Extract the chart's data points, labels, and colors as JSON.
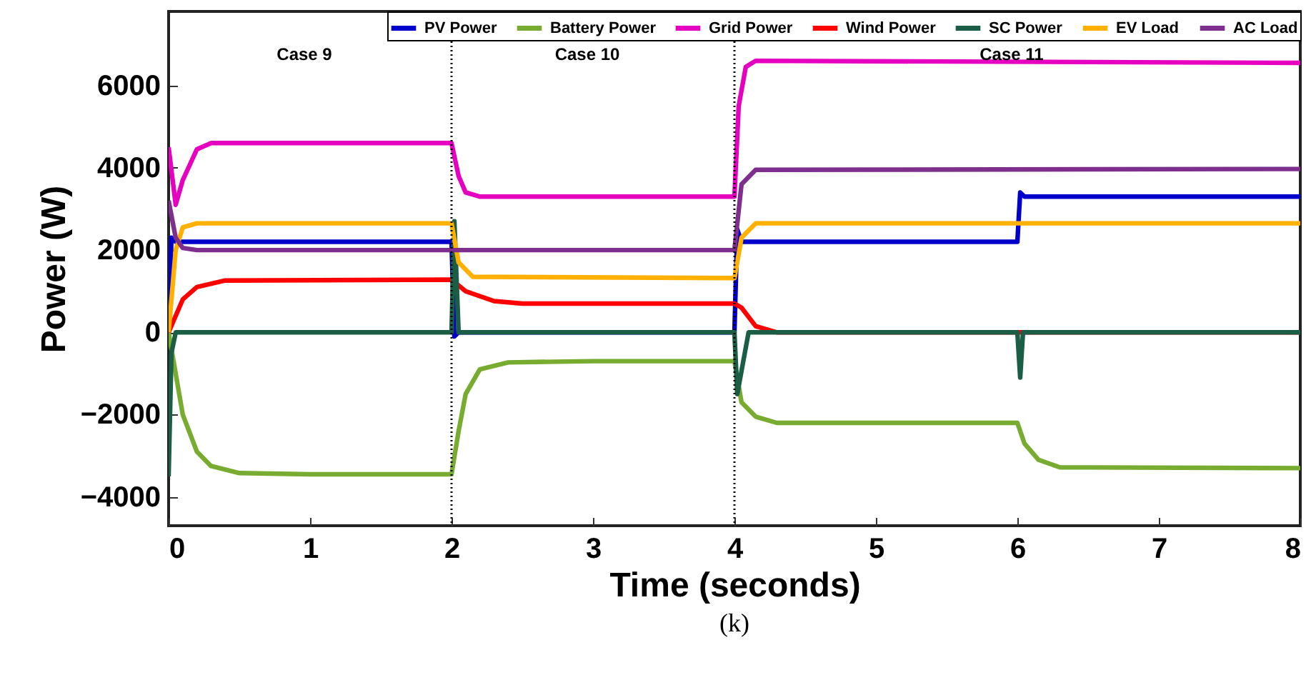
{
  "chart_data": {
    "type": "line",
    "xlabel": "Time (seconds)",
    "ylabel": "Power (W)",
    "xlim": [
      0,
      8
    ],
    "xticks": [
      0,
      1,
      2,
      3,
      4,
      5,
      6,
      7,
      8
    ],
    "ylim": [
      -4700,
      7800
    ],
    "yticks": [
      -4000,
      -2000,
      0,
      2000,
      4000,
      6000
    ],
    "legend": "top right",
    "series": [
      {
        "name": "PV Power",
        "color": "#0000cc",
        "x": [
          0,
          0.02,
          0.05,
          2.0,
          2.02,
          2.05,
          4.0,
          4.02,
          4.05,
          6.0,
          6.02,
          6.05,
          8
        ],
        "values": [
          0,
          2300,
          2200,
          2200,
          -100,
          0,
          0,
          2500,
          2200,
          2200,
          3400,
          3300,
          3300
        ]
      },
      {
        "name": "Battery Power",
        "color": "#77ac30",
        "x": [
          0,
          0.1,
          0.2,
          0.3,
          0.5,
          1,
          2.0,
          2.05,
          2.1,
          2.2,
          2.4,
          3,
          4.0,
          4.05,
          4.15,
          4.3,
          6.0,
          6.05,
          6.15,
          6.3,
          8
        ],
        "values": [
          0,
          -2000,
          -2900,
          -3250,
          -3420,
          -3450,
          -3450,
          -2400,
          -1500,
          -900,
          -730,
          -700,
          -700,
          -1700,
          -2050,
          -2200,
          -2200,
          -2700,
          -3100,
          -3280,
          -3300
        ]
      },
      {
        "name": "Grid Power",
        "color": "#e600bf",
        "x": [
          0,
          0.05,
          0.1,
          0.2,
          0.3,
          2.0,
          2.05,
          2.1,
          2.2,
          4.0,
          4.03,
          4.08,
          4.15,
          8
        ],
        "values": [
          4500,
          3100,
          3700,
          4450,
          4600,
          4600,
          3800,
          3400,
          3300,
          3300,
          5500,
          6450,
          6600,
          6550
        ]
      },
      {
        "name": "Wind Power",
        "color": "#ff0000",
        "x": [
          0,
          0.1,
          0.2,
          0.4,
          2.0,
          2.1,
          2.3,
          2.5,
          4.0,
          4.05,
          4.15,
          4.3,
          8
        ],
        "values": [
          0,
          800,
          1100,
          1260,
          1280,
          1000,
          760,
          700,
          700,
          600,
          150,
          0,
          0
        ]
      },
      {
        "name": "SC Power",
        "color": "#1a5e46",
        "x": [
          0,
          0.02,
          0.05,
          2.0,
          2.02,
          2.05,
          4.0,
          4.02,
          4.1,
          6.0,
          6.02,
          6.04,
          8
        ],
        "values": [
          -3500,
          -500,
          0,
          0,
          2700,
          0,
          0,
          -1500,
          0,
          0,
          -1100,
          0,
          0
        ]
      },
      {
        "name": "EV Load",
        "color": "#ffb000",
        "x": [
          0,
          0.05,
          0.1,
          0.2,
          2.0,
          2.05,
          2.15,
          4.0,
          4.05,
          4.15,
          8
        ],
        "values": [
          0,
          2000,
          2550,
          2650,
          2650,
          1700,
          1350,
          1320,
          2300,
          2650,
          2650
        ]
      },
      {
        "name": "AC Load",
        "color": "#7e2f8e",
        "x": [
          0,
          0.05,
          0.1,
          0.2,
          4.0,
          4.05,
          4.15,
          8
        ],
        "values": [
          3200,
          2300,
          2050,
          2000,
          2000,
          3600,
          3950,
          3970
        ]
      }
    ],
    "ref_lines": [
      {
        "axis": "x",
        "value": 2,
        "color": "#000000",
        "line_style": "dotted"
      },
      {
        "axis": "x",
        "value": 4,
        "color": "#000000",
        "line_style": "dotted"
      }
    ],
    "annotations": [
      "Case 9",
      "Case 10",
      "Case 11",
      "(k)"
    ]
  }
}
